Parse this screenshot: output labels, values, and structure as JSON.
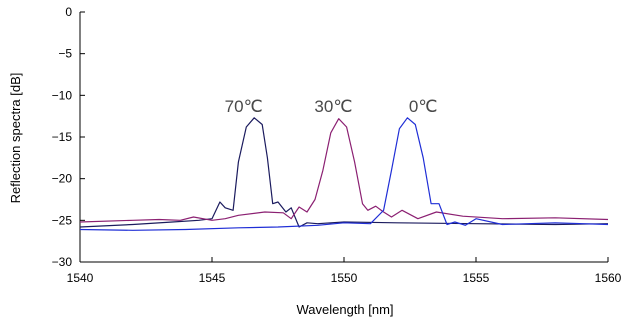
{
  "chart_data": {
    "type": "line",
    "xlabel": "Wavelength [nm]",
    "ylabel": "Reflection spectra [dB]",
    "xlim": [
      1540,
      1560
    ],
    "ylim": [
      -30,
      0
    ],
    "xticks": [
      "1540",
      "1545",
      "1550",
      "1555",
      "1560"
    ],
    "yticks": [
      "0",
      "−5",
      "−10",
      "−15",
      "−20",
      "−25",
      "−30"
    ],
    "grid": false,
    "legend": "none",
    "series": [
      {
        "name": "70℃",
        "color": "#1b1b5e",
        "x": [
          1540,
          1542,
          1543.5,
          1544.5,
          1545,
          1545.3,
          1545.5,
          1545.8,
          1546.0,
          1546.3,
          1546.6,
          1546.9,
          1547.1,
          1547.3,
          1547.5,
          1547.8,
          1548.0,
          1548.3,
          1548.6,
          1549.0,
          1550,
          1552,
          1555,
          1558,
          1560
        ],
        "y": [
          -25.8,
          -25.5,
          -25.2,
          -25.0,
          -24.8,
          -22.8,
          -23.5,
          -23.8,
          -18.0,
          -13.8,
          -12.7,
          -13.5,
          -17.5,
          -23.0,
          -22.8,
          -24.0,
          -23.5,
          -25.8,
          -25.3,
          -25.4,
          -25.2,
          -25.3,
          -25.4,
          -25.5,
          -25.4
        ]
      },
      {
        "name": "30℃",
        "color": "#8b2072",
        "x": [
          1540,
          1542,
          1543,
          1543.8,
          1544.3,
          1545,
          1545.5,
          1546,
          1547,
          1547.7,
          1548.0,
          1548.3,
          1548.6,
          1548.9,
          1549.2,
          1549.5,
          1549.8,
          1550.1,
          1550.4,
          1550.7,
          1550.9,
          1551.2,
          1551.5,
          1551.8,
          1552.2,
          1552.8,
          1553.5,
          1554.5,
          1556,
          1558,
          1560
        ],
        "y": [
          -25.2,
          -25.0,
          -24.9,
          -25.0,
          -24.6,
          -25.0,
          -24.8,
          -24.4,
          -24.0,
          -24.1,
          -24.8,
          -23.4,
          -24.0,
          -22.5,
          -19.0,
          -14.5,
          -12.8,
          -13.8,
          -18.0,
          -23.0,
          -23.8,
          -23.3,
          -24.0,
          -24.6,
          -23.8,
          -24.8,
          -24.0,
          -24.5,
          -24.8,
          -24.7,
          -24.9
        ]
      },
      {
        "name": "0℃",
        "color": "#1f2ed6",
        "x": [
          1540,
          1542,
          1544,
          1546,
          1547.5,
          1549,
          1550,
          1551,
          1551.5,
          1551.8,
          1552.1,
          1552.4,
          1552.7,
          1553.0,
          1553.3,
          1553.6,
          1553.9,
          1554.2,
          1554.6,
          1555,
          1556,
          1558,
          1560
        ],
        "y": [
          -26.1,
          -26.2,
          -26.1,
          -25.9,
          -25.8,
          -25.6,
          -25.3,
          -25.4,
          -23.8,
          -19.0,
          -14.0,
          -12.7,
          -13.5,
          -17.5,
          -23.0,
          -23.0,
          -25.5,
          -25.2,
          -25.6,
          -24.8,
          -25.5,
          -25.3,
          -25.5
        ]
      }
    ],
    "annotations": [
      {
        "text": "70℃",
        "x": 1546.2,
        "y": -12
      },
      {
        "text": "30℃",
        "x": 1549.6,
        "y": -12
      },
      {
        "text": "0℃",
        "x": 1553.0,
        "y": -12
      }
    ]
  }
}
